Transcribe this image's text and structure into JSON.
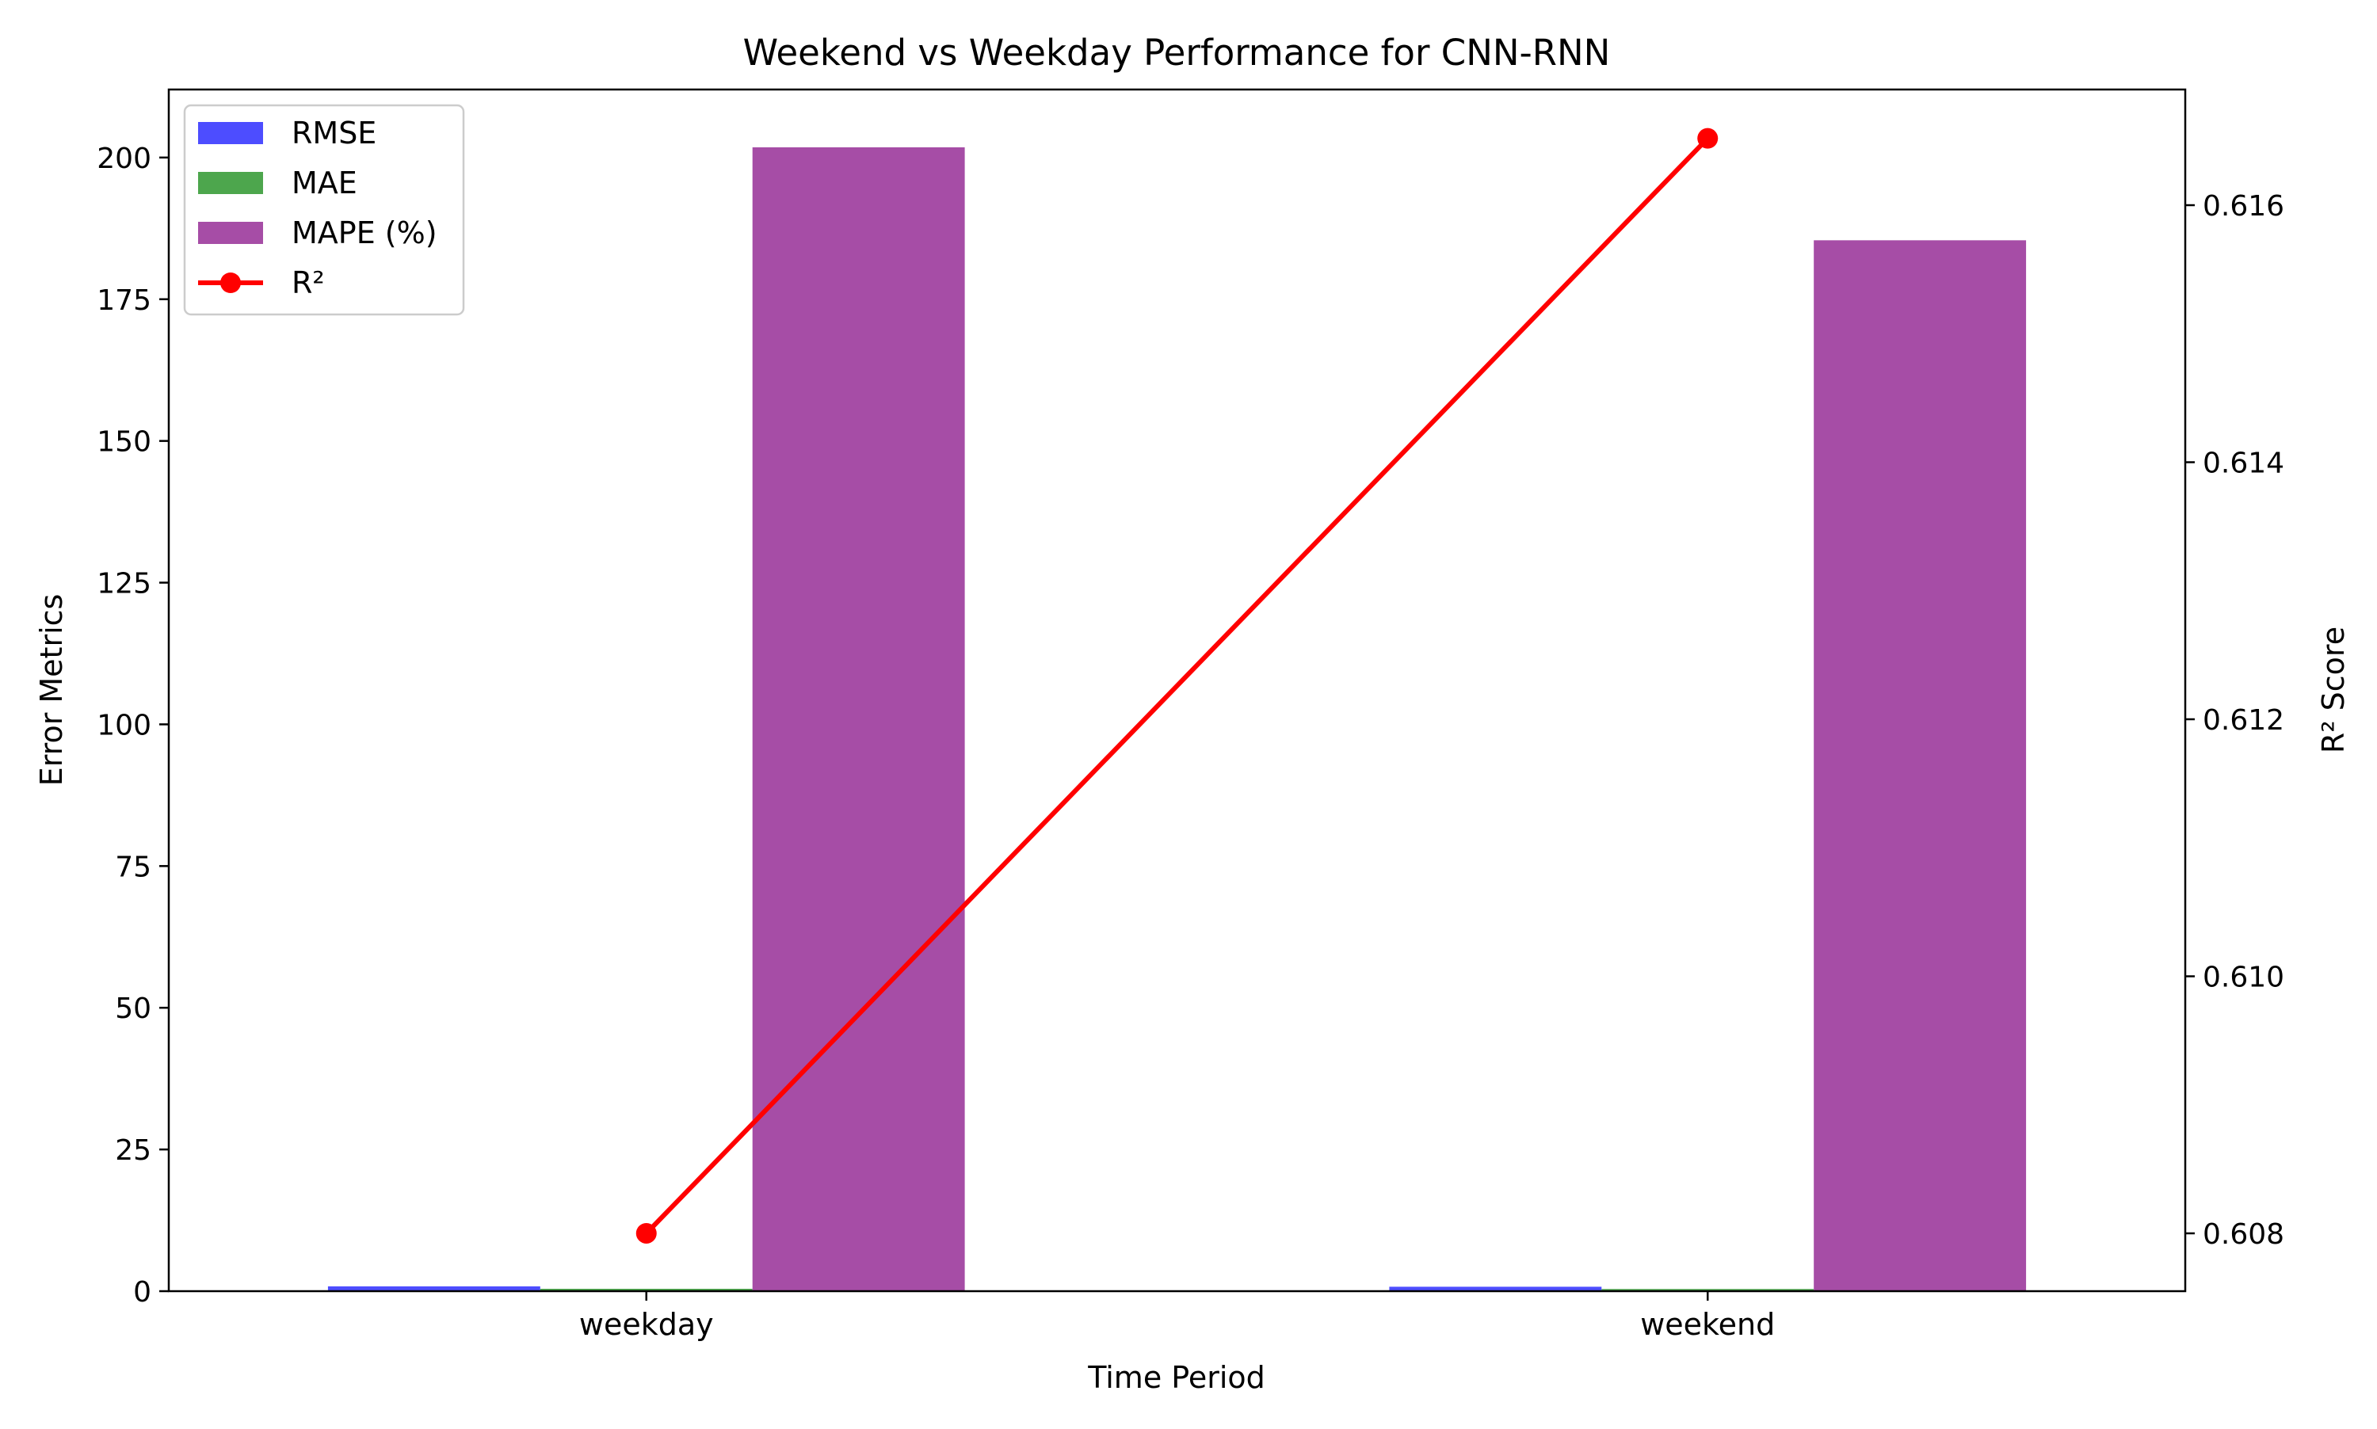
{
  "chart_data": {
    "type": "bar",
    "title": "Weekend vs Weekday Performance for CNN-RNN",
    "xlabel": "Time Period",
    "ylabel": "Error Metrics",
    "y2label": "R² Score",
    "categories": [
      "weekday",
      "weekend"
    ],
    "ylim": [
      0,
      212
    ],
    "y2lim": [
      0.60755,
      0.6169
    ],
    "y_ticks": [
      0,
      25,
      50,
      75,
      100,
      125,
      150,
      175,
      200
    ],
    "y2_ticks": [
      0.608,
      0.61,
      0.612,
      0.614,
      0.616
    ],
    "grid": false,
    "legend_position": "top-left",
    "series": [
      {
        "name": "RMSE",
        "type": "bar",
        "color": "#4d4dff",
        "values": [
          0.85,
          0.78
        ]
      },
      {
        "name": "MAE",
        "type": "bar",
        "color": "#4da64d",
        "values": [
          0.42,
          0.38
        ]
      },
      {
        "name": "MAPE (%)",
        "type": "bar",
        "color": "#a64da6",
        "values": [
          201.8,
          185.4
        ]
      },
      {
        "name": "R²",
        "type": "line",
        "axis": "right",
        "color": "#ff0000",
        "marker": "circle",
        "values": [
          0.608,
          0.61652
        ]
      }
    ]
  }
}
